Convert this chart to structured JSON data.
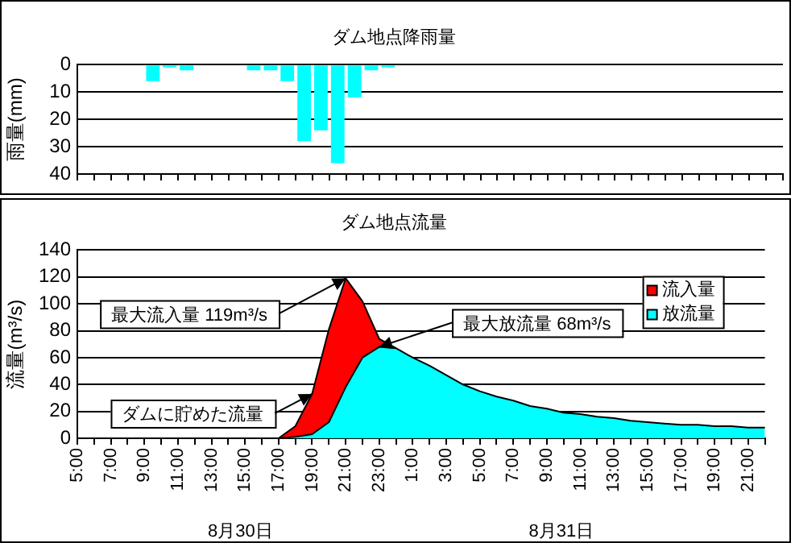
{
  "chart_data": [
    {
      "type": "bar",
      "title": "ダム地点降雨量",
      "ylabel": "雨量(mm)",
      "categories": [
        null,
        null,
        null,
        null,
        null,
        null,
        null,
        null,
        null,
        null,
        null,
        null,
        null,
        null,
        null,
        null,
        null,
        null,
        null,
        null,
        null,
        null,
        null,
        null,
        null,
        null,
        null,
        null,
        null,
        null,
        null,
        null,
        null,
        null,
        null,
        null,
        null,
        null,
        null,
        null,
        null,
        null
      ],
      "values": [
        null,
        null,
        null,
        null,
        6,
        1,
        2,
        null,
        null,
        null,
        2,
        2,
        6,
        28,
        24,
        36,
        12,
        2,
        1,
        null,
        null,
        null,
        null,
        null,
        null,
        null,
        null,
        null,
        null,
        null,
        null,
        null,
        null,
        null,
        null,
        null,
        null,
        null,
        null,
        null,
        null,
        null
      ],
      "color": "#00ffff",
      "ylim": [
        40,
        0
      ],
      "yticks": [
        0,
        10,
        20,
        30,
        40
      ],
      "grid": "y",
      "tick_labels": "y"
    },
    {
      "type": "area",
      "title": "ダム地点流量",
      "ylabel": "流量(m³/s)",
      "categories": [
        "5:00",
        null,
        "7:00",
        null,
        "9:00",
        null,
        "11:00",
        null,
        "13:00",
        null,
        "15:00",
        null,
        "17:00",
        null,
        "19:00",
        null,
        "21:00",
        null,
        "23:00",
        null,
        "1:00",
        null,
        "3:00",
        null,
        "5:00",
        null,
        "7:00",
        null,
        "9:00",
        null,
        "11:00",
        null,
        "13:00",
        null,
        "15:00",
        null,
        "17:00",
        null,
        "19:00",
        null,
        "21:00",
        null
      ],
      "series": [
        {
          "name": "流入量",
          "color": "#ff0000",
          "values": [
            0,
            0,
            0,
            0,
            0,
            0,
            0,
            0,
            0,
            0,
            0,
            0,
            0,
            9,
            33,
            81,
            119,
            102,
            74,
            67,
            null,
            null,
            null,
            null,
            null,
            null,
            null,
            null,
            null,
            null,
            null,
            null,
            null,
            null,
            null,
            null,
            null,
            null,
            null,
            null,
            null,
            null
          ]
        },
        {
          "name": "放流量",
          "color": "#00ffff",
          "values": [
            0,
            0,
            0,
            0,
            0,
            0,
            0,
            0,
            0,
            0,
            0,
            0,
            0,
            1,
            3,
            12,
            38,
            60,
            68,
            67,
            60,
            54,
            47,
            40,
            35,
            31,
            28,
            24,
            22,
            19,
            18,
            16,
            15,
            13,
            12,
            11,
            10,
            10,
            9,
            9,
            8,
            8
          ]
        }
      ],
      "ylim": [
        0,
        140
      ],
      "yticks": [
        0,
        20,
        40,
        60,
        80,
        100,
        120,
        140
      ],
      "grid": "y",
      "legend": "top right",
      "marker": "none",
      "annotations": [
        {
          "text": "最大流入量 119m³/s",
          "x": "21:00",
          "y": 119
        },
        {
          "text": "ダムに貯めた流量",
          "x": "19:00",
          "y": 33
        },
        {
          "text": "最大放流量 68m³/s",
          "x": "23:00",
          "y": 68
        },
        "8月30日",
        "8月31日"
      ]
    }
  ]
}
